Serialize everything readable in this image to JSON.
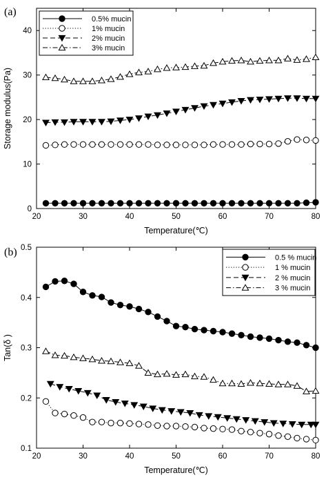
{
  "figure": {
    "panel_labels": [
      "(a)",
      "(b)"
    ]
  },
  "chart_data": [
    {
      "panel": "(a)",
      "type": "line",
      "xlabel": "Temperature(℃)",
      "ylabel": "Storage modulus(Pa)",
      "xlim": [
        20,
        80
      ],
      "ylim": [
        0,
        45
      ],
      "xticks": [
        20,
        30,
        40,
        50,
        60,
        70,
        80
      ],
      "yticks": [
        0,
        10,
        20,
        30,
        40
      ],
      "legend_position": "top-left",
      "grid": false,
      "series": [
        {
          "name": "0.5% mucin",
          "marker": "filled-circle",
          "line": "solid",
          "x": [
            22,
            24,
            26,
            28,
            30,
            32,
            34,
            36,
            38,
            40,
            42,
            44,
            46,
            48,
            50,
            52,
            54,
            56,
            58,
            60,
            62,
            64,
            66,
            68,
            70,
            72,
            74,
            76,
            78,
            80
          ],
          "y": [
            1.2,
            1.2,
            1.2,
            1.2,
            1.2,
            1.2,
            1.2,
            1.2,
            1.2,
            1.2,
            1.2,
            1.2,
            1.2,
            1.2,
            1.2,
            1.2,
            1.2,
            1.2,
            1.2,
            1.2,
            1.2,
            1.2,
            1.2,
            1.2,
            1.2,
            1.2,
            1.2,
            1.2,
            1.3,
            1.4
          ]
        },
        {
          "name": "1% mucin",
          "marker": "open-circle",
          "line": "dotted",
          "x": [
            22,
            24,
            26,
            28,
            30,
            32,
            34,
            36,
            38,
            40,
            42,
            44,
            46,
            48,
            50,
            52,
            54,
            56,
            58,
            60,
            62,
            64,
            66,
            68,
            70,
            72,
            74,
            76,
            78,
            80
          ],
          "y": [
            14.2,
            14.3,
            14.4,
            14.4,
            14.4,
            14.4,
            14.4,
            14.4,
            14.4,
            14.4,
            14.4,
            14.4,
            14.3,
            14.3,
            14.3,
            14.3,
            14.3,
            14.3,
            14.4,
            14.4,
            14.4,
            14.4,
            14.5,
            14.5,
            14.5,
            14.6,
            15.1,
            15.5,
            15.4,
            15.3
          ]
        },
        {
          "name": "2% mucin",
          "marker": "filled-triangle-down",
          "line": "dashed",
          "x": [
            22,
            24,
            26,
            28,
            30,
            32,
            34,
            36,
            38,
            40,
            42,
            44,
            46,
            48,
            50,
            52,
            54,
            56,
            58,
            60,
            62,
            64,
            66,
            68,
            70,
            72,
            74,
            76,
            78,
            80
          ],
          "y": [
            19.3,
            19.4,
            19.4,
            19.5,
            19.5,
            19.5,
            19.5,
            19.6,
            19.8,
            20.0,
            20.3,
            20.7,
            21.0,
            21.4,
            21.8,
            22.2,
            22.6,
            23.0,
            23.3,
            23.6,
            23.9,
            24.2,
            24.4,
            24.5,
            24.6,
            24.7,
            24.8,
            24.8,
            24.7,
            24.7
          ]
        },
        {
          "name": "3% mucin",
          "marker": "open-triangle-up",
          "line": "dash-dot",
          "x": [
            22,
            24,
            26,
            28,
            30,
            32,
            34,
            36,
            38,
            40,
            42,
            44,
            46,
            48,
            50,
            52,
            54,
            56,
            58,
            60,
            62,
            64,
            66,
            68,
            70,
            72,
            74,
            76,
            78,
            80
          ],
          "y": [
            29.5,
            29.3,
            29.0,
            28.6,
            28.6,
            28.6,
            28.8,
            29.1,
            29.6,
            30.2,
            30.6,
            30.8,
            31.3,
            31.6,
            31.7,
            31.8,
            32.0,
            32.1,
            32.7,
            33.0,
            33.2,
            33.3,
            33.0,
            33.2,
            33.3,
            33.3,
            33.7,
            33.4,
            33.6,
            34.0
          ]
        }
      ]
    },
    {
      "panel": "(b)",
      "type": "line",
      "xlabel": "Temperature(℃)",
      "ylabel": "Tan(δ )",
      "xlim": [
        20,
        80
      ],
      "ylim": [
        0.1,
        0.5
      ],
      "xticks": [
        20,
        30,
        40,
        50,
        60,
        70,
        80
      ],
      "yticks": [
        0.1,
        0.2,
        0.3,
        0.4,
        0.5
      ],
      "legend_position": "top-right",
      "grid": false,
      "series": [
        {
          "name": "0.5 % mucin",
          "marker": "filled-circle",
          "line": "solid",
          "x": [
            22,
            24,
            26,
            28,
            30,
            32,
            34,
            36,
            38,
            40,
            42,
            44,
            46,
            48,
            50,
            52,
            54,
            56,
            58,
            60,
            62,
            64,
            66,
            68,
            70,
            72,
            74,
            76,
            78,
            80
          ],
          "y": [
            0.421,
            0.432,
            0.433,
            0.427,
            0.411,
            0.404,
            0.401,
            0.39,
            0.385,
            0.382,
            0.377,
            0.371,
            0.362,
            0.353,
            0.343,
            0.341,
            0.337,
            0.335,
            0.333,
            0.331,
            0.328,
            0.325,
            0.322,
            0.32,
            0.318,
            0.315,
            0.312,
            0.31,
            0.305,
            0.3
          ]
        },
        {
          "name": "1 % mucin",
          "marker": "open-circle",
          "line": "dotted",
          "x": [
            22,
            24,
            26,
            28,
            30,
            32,
            34,
            36,
            38,
            40,
            42,
            44,
            46,
            48,
            50,
            52,
            54,
            56,
            58,
            60,
            62,
            64,
            66,
            68,
            70,
            72,
            74,
            76,
            78,
            80
          ],
          "y": [
            0.193,
            0.17,
            0.168,
            0.165,
            0.161,
            0.152,
            0.152,
            0.15,
            0.15,
            0.149,
            0.148,
            0.147,
            0.145,
            0.144,
            0.144,
            0.143,
            0.142,
            0.14,
            0.139,
            0.138,
            0.137,
            0.134,
            0.132,
            0.13,
            0.128,
            0.125,
            0.123,
            0.12,
            0.118,
            0.116
          ]
        },
        {
          "name": "2 % mucin",
          "marker": "filled-triangle-down",
          "line": "dashed",
          "x": [
            23,
            25,
            27,
            29,
            31,
            33,
            35,
            37,
            39,
            41,
            43,
            45,
            47,
            49,
            51,
            53,
            55,
            57,
            59,
            61,
            63,
            65,
            67,
            69,
            71,
            73,
            75,
            77,
            79,
            80
          ],
          "y": [
            0.228,
            0.222,
            0.218,
            0.214,
            0.21,
            0.205,
            0.196,
            0.192,
            0.189,
            0.186,
            0.183,
            0.179,
            0.176,
            0.174,
            0.172,
            0.17,
            0.166,
            0.164,
            0.162,
            0.16,
            0.158,
            0.156,
            0.154,
            0.152,
            0.15,
            0.149,
            0.148,
            0.147,
            0.147,
            0.147
          ]
        },
        {
          "name": "3 % mucin",
          "marker": "open-triangle-up",
          "line": "dash-dot",
          "x": [
            22,
            24,
            26,
            28,
            30,
            32,
            34,
            36,
            38,
            40,
            42,
            44,
            46,
            48,
            50,
            52,
            54,
            56,
            58,
            60,
            62,
            64,
            66,
            68,
            70,
            72,
            74,
            76,
            78,
            80
          ],
          "y": [
            0.293,
            0.285,
            0.284,
            0.281,
            0.279,
            0.277,
            0.274,
            0.273,
            0.271,
            0.269,
            0.264,
            0.25,
            0.247,
            0.248,
            0.246,
            0.247,
            0.243,
            0.242,
            0.236,
            0.229,
            0.229,
            0.228,
            0.23,
            0.229,
            0.228,
            0.227,
            0.227,
            0.224,
            0.213,
            0.214
          ]
        }
      ]
    }
  ]
}
